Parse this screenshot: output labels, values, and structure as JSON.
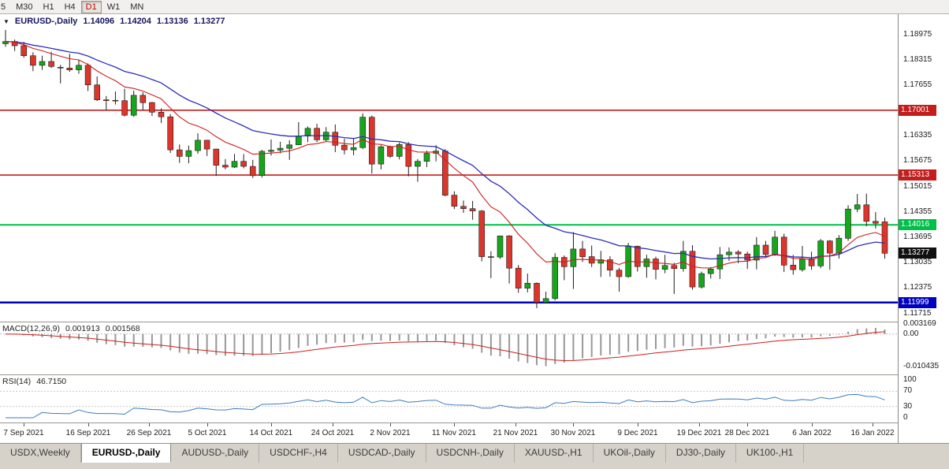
{
  "toolbar": {
    "buttons": [
      {
        "label": "5",
        "active": false
      },
      {
        "label": "M30",
        "active": false
      },
      {
        "label": "H1",
        "active": false
      },
      {
        "label": "H4",
        "active": false
      },
      {
        "label": "D1",
        "active": true
      },
      {
        "label": "W1",
        "active": false
      },
      {
        "label": "MN",
        "active": false
      }
    ]
  },
  "chart": {
    "type": "candlestick",
    "header": {
      "arrow": "▼",
      "title": "EURUSD-,Daily",
      "open": "1.14096",
      "high": "1.14204",
      "low": "1.13136",
      "close": "1.13277"
    },
    "price_axis": {
      "labels": [
        "1.18975",
        "1.18315",
        "1.17655",
        "1.16335",
        "1.15675",
        "1.15015",
        "1.14355",
        "1.13695",
        "1.13035",
        "1.12375",
        "1.11715"
      ]
    },
    "levels": [
      {
        "label": "1.17001",
        "price": 1.17001,
        "color": "#c31d1d",
        "thickness": 1.6
      },
      {
        "label": "1.15313",
        "price": 1.15313,
        "color": "#c31d1d",
        "thickness": 1.6
      },
      {
        "label": "1.14016",
        "price": 1.14016,
        "color": "#00c04a",
        "thickness": 2
      },
      {
        "label": "1.11999",
        "price": 1.11999,
        "color": "#0000c0",
        "thickness": 2.5
      }
    ],
    "current_price": {
      "label": "1.13277",
      "value": 1.13277
    },
    "candles": [
      [
        1.1873,
        1.1909,
        1.1865,
        1.1879
      ],
      [
        1.1879,
        1.1884,
        1.1854,
        1.1868
      ],
      [
        1.1868,
        1.1878,
        1.1837,
        1.1842
      ],
      [
        1.1842,
        1.1851,
        1.1802,
        1.1817
      ],
      [
        1.1817,
        1.1842,
        1.1805,
        1.1827
      ],
      [
        1.1827,
        1.1852,
        1.181,
        1.1814
      ],
      [
        1.1812,
        1.1818,
        1.177,
        1.181
      ],
      [
        1.181,
        1.1847,
        1.18,
        1.1805
      ],
      [
        1.1805,
        1.1832,
        1.1795,
        1.1817
      ],
      [
        1.1817,
        1.1822,
        1.175,
        1.1766
      ],
      [
        1.1766,
        1.1788,
        1.1724,
        1.1727
      ],
      [
        1.1727,
        1.1737,
        1.17,
        1.1726
      ],
      [
        1.1726,
        1.1749,
        1.1715,
        1.1725
      ],
      [
        1.1725,
        1.1756,
        1.1684,
        1.1687
      ],
      [
        1.1687,
        1.1751,
        1.1683,
        1.1739
      ],
      [
        1.1739,
        1.1747,
        1.1701,
        1.172
      ],
      [
        1.172,
        1.1722,
        1.1685,
        1.1695
      ],
      [
        1.1695,
        1.1705,
        1.1667,
        1.1683
      ],
      [
        1.1683,
        1.169,
        1.1589,
        1.1597
      ],
      [
        1.1597,
        1.1611,
        1.1563,
        1.158
      ],
      [
        1.158,
        1.1608,
        1.1562,
        1.1595
      ],
      [
        1.1595,
        1.164,
        1.1587,
        1.1622
      ],
      [
        1.1622,
        1.1623,
        1.1581,
        1.1599
      ],
      [
        1.1599,
        1.16,
        1.1529,
        1.1557
      ],
      [
        1.1557,
        1.1573,
        1.1546,
        1.1552
      ],
      [
        1.1552,
        1.1586,
        1.155,
        1.1567
      ],
      [
        1.1567,
        1.1586,
        1.1549,
        1.1554
      ],
      [
        1.1554,
        1.1571,
        1.1524,
        1.153
      ],
      [
        1.153,
        1.1597,
        1.1525,
        1.1593
      ],
      [
        1.1593,
        1.1624,
        1.1582,
        1.1596
      ],
      [
        1.1596,
        1.1618,
        1.1588,
        1.1601
      ],
      [
        1.1601,
        1.1622,
        1.1571,
        1.161
      ],
      [
        1.161,
        1.1669,
        1.1609,
        1.1633
      ],
      [
        1.1633,
        1.1658,
        1.1617,
        1.1653
      ],
      [
        1.1653,
        1.1665,
        1.1617,
        1.1623
      ],
      [
        1.1623,
        1.1656,
        1.162,
        1.1643
      ],
      [
        1.1643,
        1.1663,
        1.1591,
        1.1609
      ],
      [
        1.1609,
        1.1626,
        1.1585,
        1.1597
      ],
      [
        1.1597,
        1.1626,
        1.1583,
        1.1603
      ],
      [
        1.1603,
        1.1692,
        1.1599,
        1.1682
      ],
      [
        1.1682,
        1.1686,
        1.1535,
        1.156
      ],
      [
        1.156,
        1.1609,
        1.1546,
        1.1605
      ],
      [
        1.1605,
        1.1608,
        1.1576,
        1.158
      ],
      [
        1.158,
        1.1616,
        1.1572,
        1.1611
      ],
      [
        1.1611,
        1.1617,
        1.1528,
        1.1554
      ],
      [
        1.1554,
        1.1573,
        1.1514,
        1.1567
      ],
      [
        1.1567,
        1.1595,
        1.1552,
        1.1588
      ],
      [
        1.1588,
        1.1609,
        1.1567,
        1.1594
      ],
      [
        1.1594,
        1.1599,
        1.1476,
        1.1479
      ],
      [
        1.1479,
        1.1489,
        1.1443,
        1.145
      ],
      [
        1.145,
        1.1465,
        1.1433,
        1.1444
      ],
      [
        1.1444,
        1.1464,
        1.1415,
        1.1438
      ],
      [
        1.1438,
        1.144,
        1.1307,
        1.1319
      ],
      [
        1.1319,
        1.1333,
        1.1263,
        1.1318
      ],
      [
        1.1318,
        1.1374,
        1.1313,
        1.1373
      ],
      [
        1.1373,
        1.1375,
        1.1249,
        1.1289
      ],
      [
        1.1289,
        1.1297,
        1.1225,
        1.1237
      ],
      [
        1.1237,
        1.1275,
        1.1226,
        1.125
      ],
      [
        1.125,
        1.1252,
        1.1185,
        1.12
      ],
      [
        1.12,
        1.1228,
        1.1198,
        1.121
      ],
      [
        1.121,
        1.1328,
        1.1205,
        1.1317
      ],
      [
        1.1317,
        1.1322,
        1.1258,
        1.1293
      ],
      [
        1.1293,
        1.1383,
        1.1235,
        1.1339
      ],
      [
        1.1339,
        1.136,
        1.1305,
        1.1319
      ],
      [
        1.1319,
        1.1348,
        1.1292,
        1.1302
      ],
      [
        1.1302,
        1.1334,
        1.1266,
        1.1311
      ],
      [
        1.1311,
        1.132,
        1.1267,
        1.1284
      ],
      [
        1.1284,
        1.129,
        1.1228,
        1.1267
      ],
      [
        1.1267,
        1.1355,
        1.1264,
        1.1346
      ],
      [
        1.1346,
        1.1348,
        1.128,
        1.1293
      ],
      [
        1.1293,
        1.1324,
        1.1264,
        1.1313
      ],
      [
        1.1313,
        1.1319,
        1.126,
        1.1286
      ],
      [
        1.1286,
        1.1324,
        1.1276,
        1.1296
      ],
      [
        1.1296,
        1.1303,
        1.1222,
        1.1288
      ],
      [
        1.1288,
        1.136,
        1.128,
        1.1333
      ],
      [
        1.1333,
        1.1349,
        1.1233,
        1.124
      ],
      [
        1.124,
        1.128,
        1.1236,
        1.1275
      ],
      [
        1.1275,
        1.1292,
        1.1262,
        1.1287
      ],
      [
        1.1287,
        1.1344,
        1.1261,
        1.1324
      ],
      [
        1.1324,
        1.1343,
        1.1308,
        1.1331
      ],
      [
        1.1331,
        1.1336,
        1.1302,
        1.1326
      ],
      [
        1.1326,
        1.1332,
        1.1287,
        1.131
      ],
      [
        1.131,
        1.137,
        1.1286,
        1.1349
      ],
      [
        1.1349,
        1.136,
        1.1316,
        1.1325
      ],
      [
        1.1325,
        1.1386,
        1.1321,
        1.137
      ],
      [
        1.137,
        1.1379,
        1.1279,
        1.1297
      ],
      [
        1.1297,
        1.1324,
        1.1272,
        1.1285
      ],
      [
        1.1285,
        1.1347,
        1.128,
        1.1313
      ],
      [
        1.1313,
        1.1332,
        1.1285,
        1.1295
      ],
      [
        1.1295,
        1.1365,
        1.1289,
        1.136
      ],
      [
        1.136,
        1.1362,
        1.1285,
        1.1328
      ],
      [
        1.1328,
        1.1375,
        1.1314,
        1.1367
      ],
      [
        1.1367,
        1.1453,
        1.136,
        1.1443
      ],
      [
        1.1443,
        1.1482,
        1.1435,
        1.1454
      ],
      [
        1.1454,
        1.1483,
        1.1398,
        1.1411
      ],
      [
        1.1411,
        1.1435,
        1.1392,
        1.1406
      ],
      [
        1.14096,
        1.14204,
        1.13136,
        1.13277
      ]
    ],
    "date_labels": [
      {
        "text": "7 Sep 2021",
        "i": 2
      },
      {
        "text": "16 Sep 2021",
        "i": 9
      },
      {
        "text": "26 Sep 2021",
        "i": 15.7
      },
      {
        "text": "5 Oct 2021",
        "i": 22
      },
      {
        "text": "14 Oct 2021",
        "i": 29
      },
      {
        "text": "24 Oct 2021",
        "i": 35.7
      },
      {
        "text": "2 Nov 2021",
        "i": 42
      },
      {
        "text": "11 Nov 2021",
        "i": 49
      },
      {
        "text": "21 Nov 2021",
        "i": 55.7
      },
      {
        "text": "30 Nov 2021",
        "i": 62
      },
      {
        "text": "9 Dec 2021",
        "i": 69
      },
      {
        "text": "19 Dec 2021",
        "i": 75.7
      },
      {
        "text": "28 Dec 2021",
        "i": 81
      },
      {
        "text": "6 Jan 2022",
        "i": 88
      },
      {
        "text": "16 Jan 2022",
        "i": 94.7
      }
    ]
  },
  "macd": {
    "title": "MACD(12,26,9)",
    "value_main": "0.001913",
    "value_signal": "0.001568",
    "axis": [
      "0.003169",
      "0.00",
      "-0.010435"
    ]
  },
  "rsi": {
    "title": "RSI(14)",
    "value": "46.7150",
    "axis": [
      "100",
      "70",
      "30",
      "0"
    ]
  },
  "tabs": [
    {
      "label": "USDX,Weekly",
      "active": false
    },
    {
      "label": "EURUSD-,Daily",
      "active": true
    },
    {
      "label": "AUDUSD-,Daily",
      "active": false
    },
    {
      "label": "USDCHF-,H4",
      "active": false
    },
    {
      "label": "USDCAD-,Daily",
      "active": false
    },
    {
      "label": "USDCNH-,Daily",
      "active": false
    },
    {
      "label": "XAUUSD-,H1",
      "active": false
    },
    {
      "label": "UKOil-,Daily",
      "active": false
    },
    {
      "label": "DJ30-,Daily",
      "active": false
    },
    {
      "label": "UK100-,H1",
      "active": false
    }
  ],
  "colors": {
    "bull": "#17a51b",
    "bear": "#dc352b",
    "outline": "#1f1f1f",
    "ma_fast": "#cf1d1d",
    "ma_slow": "#2d2dbb",
    "macd_hist": "#989898",
    "macd_signal": "#cf1d1d",
    "rsi_line": "#3e7bc0",
    "current_badge": "#101010"
  }
}
